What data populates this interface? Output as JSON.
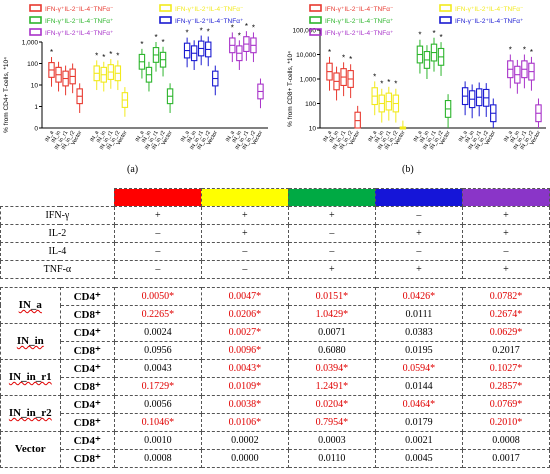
{
  "charts": {
    "a": {
      "ylabel": "% from CD4+ T-cells, *10⁴",
      "ticks": [
        "1,000",
        "100",
        "10",
        "1",
        "0"
      ],
      "caption": "(a)",
      "legend": [
        {
          "label": "IFN-γ⁺IL-2⁻IL-4⁻TNFα⁻",
          "color": "#e8392f"
        },
        {
          "label": "IFN-γ⁺IL-2⁺IL-4⁻TNFα⁻",
          "color": "#f2ea1d"
        },
        {
          "label": "IFN-γ⁺IL-2⁻IL-4⁻TNFα⁺",
          "color": "#2db52d"
        },
        {
          "label": "IFN-γ⁻IL-2⁺IL-4⁻TNFα⁺",
          "color": "#1a1ad1"
        },
        {
          "label": "IFN-γ⁺IL-2⁺IL-4⁻TNFα⁺",
          "color": "#a832c9"
        }
      ]
    },
    "b": {
      "ylabel": "% from CD8+ T-cells, *10⁴",
      "ticks": [
        "100,000",
        "10,000",
        "1,000",
        "100",
        "10"
      ],
      "caption": "(b)"
    },
    "groups": [
      "IN_a",
      "IN_in",
      "IN_in_r1",
      "IN_in_r2",
      "Vector"
    ]
  },
  "chart_data": [
    {
      "type": "box",
      "ylabel": "% from CD4+ T-cells, *10⁴",
      "yscale": "log",
      "ylim": [
        0.1,
        1000
      ],
      "groups": [
        "IN_a",
        "IN_in",
        "IN_in_r1",
        "IN_in_r2",
        "Vector"
      ],
      "series": [
        {
          "name": "IFN-γ⁺IL-2⁻IL-4⁻TNFα⁻",
          "color": "#e8392f",
          "medians": [
            50,
            30,
            20,
            25,
            3
          ],
          "stars": [
            1,
            0,
            0,
            0,
            0
          ]
        },
        {
          "name": "IFN-γ⁺IL-2⁺IL-4⁻TNFα⁻",
          "color": "#f2ea1d",
          "medians": [
            35,
            30,
            40,
            35,
            2
          ],
          "stars": [
            1,
            1,
            1,
            1,
            0
          ]
        },
        {
          "name": "IFN-γ⁺IL-2⁻IL-4⁻TNFα⁺",
          "color": "#2db52d",
          "medians": [
            120,
            30,
            250,
            150,
            3
          ],
          "stars": [
            1,
            0,
            1,
            1,
            0
          ]
        },
        {
          "name": "IFN-γ⁻IL-2⁺IL-4⁻TNFα⁺",
          "color": "#1a1ad1",
          "medians": [
            400,
            300,
            500,
            450,
            20
          ],
          "stars": [
            1,
            0,
            1,
            1,
            0
          ]
        },
        {
          "name": "IFN-γ⁺IL-2⁺IL-4⁻TNFα⁺",
          "color": "#a832c9",
          "medians": [
            700,
            300,
            800,
            700,
            5
          ],
          "stars": [
            1,
            1,
            1,
            1,
            0
          ]
        }
      ]
    },
    {
      "type": "box",
      "ylabel": "% from CD8+ T-cells, *10⁴",
      "yscale": "log",
      "ylim": [
        10,
        100000
      ],
      "groups": [
        "IN_a",
        "IN_in",
        "IN_in_r1",
        "IN_in_r2",
        "Vector"
      ],
      "series": [
        {
          "name": "IFN-γ⁺IL-2⁻IL-4⁻TNFα⁻",
          "color": "#e8392f",
          "medians": [
            2000,
            800,
            1200,
            1000,
            20
          ],
          "stars": [
            1,
            0,
            1,
            1,
            0
          ]
        },
        {
          "name": "IFN-γ⁺IL-2⁺IL-4⁻TNFα⁻",
          "color": "#f2ea1d",
          "medians": [
            200,
            100,
            120,
            100,
            5
          ],
          "stars": [
            1,
            1,
            1,
            1,
            0
          ]
        },
        {
          "name": "IFN-γ⁺IL-2⁻IL-4⁻TNFα⁺",
          "color": "#2db52d",
          "medians": [
            10000,
            6000,
            12000,
            8000,
            60
          ],
          "stars": [
            1,
            0,
            1,
            1,
            0
          ]
        },
        {
          "name": "IFN-γ⁻IL-2⁺IL-4⁻TNFα⁺",
          "color": "#1a1ad1",
          "medians": [
            200,
            150,
            180,
            170,
            40
          ],
          "stars": [
            0,
            0,
            0,
            0,
            0
          ]
        },
        {
          "name": "IFN-γ⁺IL-2⁺IL-4⁻TNFα⁺",
          "color": "#a832c9",
          "medians": [
            2500,
            1500,
            2500,
            2000,
            40
          ],
          "stars": [
            1,
            0,
            1,
            1,
            0
          ]
        }
      ]
    }
  ],
  "table": {
    "colors": [
      "#ff0000",
      "#ffff00",
      "#00aa44",
      "#1515d8",
      "#8a35c8"
    ],
    "cytokines": [
      {
        "name": "IFN-γ",
        "vals": [
          "+",
          "+",
          "+",
          "–",
          "+"
        ]
      },
      {
        "name": "IL-2",
        "vals": [
          "–",
          "+",
          "–",
          "+",
          "+"
        ]
      },
      {
        "name": "IL-4",
        "vals": [
          "–",
          "–",
          "–",
          "–",
          "–"
        ]
      },
      {
        "name": "TNF-α",
        "vals": [
          "–",
          "–",
          "+",
          "+",
          "+"
        ]
      }
    ],
    "groups": [
      {
        "name": "IN_a",
        "rows": [
          {
            "cell": "CD4⁺",
            "vals": [
              "0.0050*",
              "0.0047*",
              "0.0151*",
              "0.0426*",
              "0.0782*"
            ]
          },
          {
            "cell": "CD8⁺",
            "vals": [
              "0.2265*",
              "0.0206*",
              "1.0429*",
              "0.0111",
              "0.2674*"
            ]
          }
        ]
      },
      {
        "name": "IN_in",
        "rows": [
          {
            "cell": "CD4⁺",
            "vals": [
              "0.0024",
              "0.0027*",
              "0.0071",
              "0.0383",
              "0.0629*"
            ]
          },
          {
            "cell": "CD8⁺",
            "vals": [
              "0.0956",
              "0.0096*",
              "0.6080",
              "0.0195",
              "0.2017"
            ]
          }
        ]
      },
      {
        "name": "IN_in_r1",
        "rows": [
          {
            "cell": "CD4⁺",
            "vals": [
              "0.0043",
              "0.0043*",
              "0.0394*",
              "0.0594*",
              "0.1027*"
            ]
          },
          {
            "cell": "CD8⁺",
            "vals": [
              "0.1729*",
              "0.0109*",
              "1.2491*",
              "0.0144",
              "0.2857*"
            ]
          }
        ]
      },
      {
        "name": "IN_in_r2",
        "rows": [
          {
            "cell": "CD4⁺",
            "vals": [
              "0.0056",
              "0.0038*",
              "0.0204*",
              "0.0464*",
              "0.0769*"
            ]
          },
          {
            "cell": "CD8⁺",
            "vals": [
              "0.1046*",
              "0.0106*",
              "0.7954*",
              "0.0179",
              "0.2010*"
            ]
          }
        ]
      },
      {
        "name": "Vector",
        "rows": [
          {
            "cell": "CD4⁺",
            "vals": [
              "0.0010",
              "0.0002",
              "0.0003",
              "0.0021",
              "0.0008"
            ]
          },
          {
            "cell": "CD8⁺",
            "vals": [
              "0.0008",
              "0.0000",
              "0.0110",
              "0.0045",
              "0.0017"
            ]
          }
        ]
      }
    ]
  }
}
